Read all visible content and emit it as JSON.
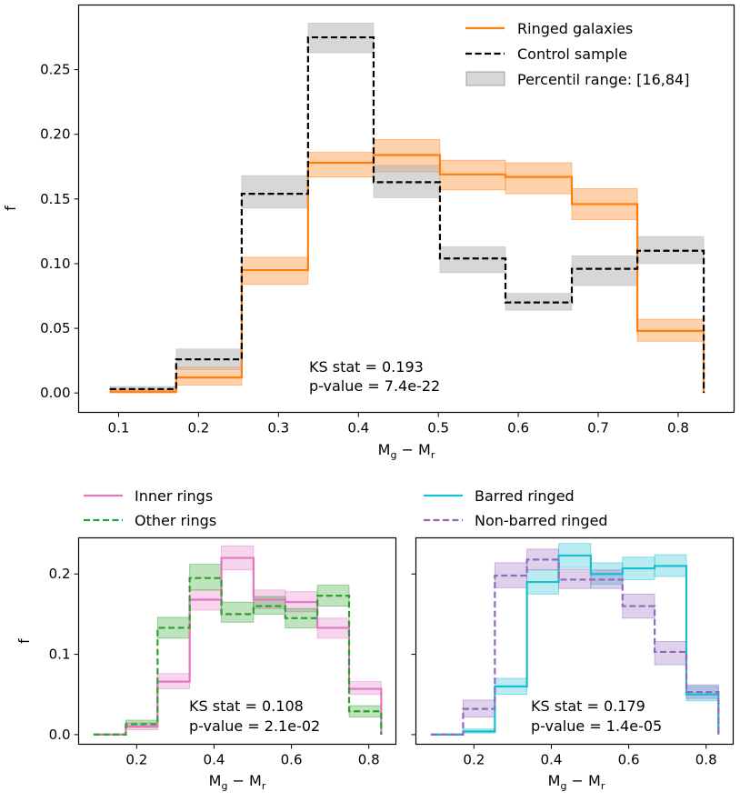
{
  "colors": {
    "ringed": "#ff7f0e",
    "control": "#000000",
    "band_gray": "#b0b0b0",
    "inner": "#e377c2",
    "other": "#2ca02c",
    "barred": "#17becf",
    "nonbarred": "#9467bd"
  },
  "chart_data": [
    {
      "type": "line",
      "subtype": "step-histogram",
      "panel": "top",
      "title": "",
      "xlabel": "M_g - M_r",
      "ylabel": "f",
      "xlim": [
        0.05,
        0.87
      ],
      "ylim": [
        -0.015,
        0.3
      ],
      "x_ticks": [
        0.1,
        0.2,
        0.3,
        0.4,
        0.5,
        0.6,
        0.7,
        0.8
      ],
      "x_tick_labels": [
        "0.1",
        "0.2",
        "0.3",
        "0.4",
        "0.5",
        "0.6",
        "0.7",
        "0.8"
      ],
      "y_ticks": [
        0,
        0.05,
        0.1,
        0.15,
        0.2,
        0.25
      ],
      "y_tick_labels": [
        "0.00",
        "0.05",
        "0.10",
        "0.15",
        "0.20",
        "0.25"
      ],
      "bin_edges": [
        0.089,
        0.172,
        0.254,
        0.337,
        0.419,
        0.502,
        0.584,
        0.667,
        0.749,
        0.832
      ],
      "series": [
        {
          "name": "Ringed galaxies",
          "style": "solid",
          "color": "#ff7f0e",
          "values": [
            0.001,
            0.012,
            0.095,
            0.178,
            0.184,
            0.169,
            0.167,
            0.146,
            0.048
          ],
          "lower": [
            0.0,
            0.006,
            0.084,
            0.167,
            0.171,
            0.157,
            0.154,
            0.134,
            0.04
          ],
          "upper": [
            0.003,
            0.02,
            0.105,
            0.186,
            0.196,
            0.18,
            0.178,
            0.158,
            0.057
          ]
        },
        {
          "name": "Control sample",
          "style": "dashed",
          "color": "#000000",
          "values": [
            0.003,
            0.026,
            0.154,
            0.275,
            0.163,
            0.104,
            0.07,
            0.096,
            0.11
          ],
          "lower": [
            0.001,
            0.018,
            0.143,
            0.263,
            0.151,
            0.093,
            0.064,
            0.083,
            0.1
          ],
          "upper": [
            0.005,
            0.034,
            0.168,
            0.286,
            0.176,
            0.113,
            0.077,
            0.106,
            0.121
          ]
        }
      ],
      "legend": {
        "position": "top-right",
        "entries": [
          "Ringed galaxies",
          "Control sample",
          "Percentil range: [16,84]"
        ]
      },
      "annotation": [
        "KS stat = 0.193",
        "p-value = 7.4e-22"
      ]
    },
    {
      "type": "line",
      "subtype": "step-histogram",
      "panel": "bottom-left",
      "xlabel": "M_g - M_r",
      "ylabel": "f",
      "xlim": [
        0.05,
        0.87
      ],
      "ylim": [
        -0.012,
        0.245
      ],
      "x_ticks": [
        0.2,
        0.4,
        0.6,
        0.8
      ],
      "x_tick_labels": [
        "0.2",
        "0.4",
        "0.6",
        "0.8"
      ],
      "y_ticks": [
        0,
        0.1,
        0.2
      ],
      "y_tick_labels": [
        "0.0",
        "0.1",
        "0.2"
      ],
      "bin_edges": [
        0.089,
        0.172,
        0.254,
        0.337,
        0.419,
        0.502,
        0.584,
        0.667,
        0.749,
        0.832
      ],
      "series": [
        {
          "name": "Inner rings",
          "style": "solid",
          "color": "#e377c2",
          "values": [
            0.0,
            0.01,
            0.066,
            0.168,
            0.22,
            0.168,
            0.165,
            0.133,
            0.057
          ],
          "lower": [
            0.0,
            0.006,
            0.057,
            0.155,
            0.205,
            0.157,
            0.153,
            0.12,
            0.05
          ],
          "upper": [
            0.001,
            0.015,
            0.076,
            0.18,
            0.235,
            0.18,
            0.178,
            0.145,
            0.066
          ]
        },
        {
          "name": "Other rings",
          "style": "dashed",
          "color": "#2ca02c",
          "values": [
            0.0,
            0.013,
            0.133,
            0.195,
            0.15,
            0.16,
            0.145,
            0.173,
            0.029
          ],
          "lower": [
            0.0,
            0.009,
            0.12,
            0.18,
            0.14,
            0.15,
            0.133,
            0.16,
            0.022
          ],
          "upper": [
            0.001,
            0.018,
            0.146,
            0.212,
            0.165,
            0.172,
            0.157,
            0.186,
            0.036
          ]
        }
      ],
      "legend": {
        "position": "above-left",
        "entries": [
          "Inner rings",
          "Other rings"
        ]
      },
      "annotation": [
        "KS stat = 0.108",
        "p-value = 2.1e-02"
      ]
    },
    {
      "type": "line",
      "subtype": "step-histogram",
      "panel": "bottom-right",
      "xlabel": "M_g - M_r",
      "ylabel": "",
      "xlim": [
        0.05,
        0.87
      ],
      "ylim": [
        -0.012,
        0.245
      ],
      "x_ticks": [
        0.2,
        0.4,
        0.6,
        0.8
      ],
      "x_tick_labels": [
        "0.2",
        "0.4",
        "0.6",
        "0.8"
      ],
      "y_ticks": [
        0,
        0.1,
        0.2
      ],
      "y_tick_labels": [
        "",
        "",
        ""
      ],
      "bin_edges": [
        0.089,
        0.172,
        0.254,
        0.337,
        0.419,
        0.502,
        0.584,
        0.667,
        0.749,
        0.832
      ],
      "series": [
        {
          "name": "Barred ringed",
          "style": "solid",
          "color": "#17becf",
          "values": [
            0.0,
            0.004,
            0.06,
            0.19,
            0.223,
            0.2,
            0.207,
            0.21,
            0.05
          ],
          "lower": [
            0.0,
            0.002,
            0.05,
            0.175,
            0.208,
            0.187,
            0.193,
            0.197,
            0.042
          ],
          "upper": [
            0.001,
            0.007,
            0.07,
            0.205,
            0.238,
            0.214,
            0.221,
            0.224,
            0.06
          ]
        },
        {
          "name": "Non-barred ringed",
          "style": "dashed",
          "color": "#9467bd",
          "values": [
            0.0,
            0.032,
            0.198,
            0.218,
            0.193,
            0.193,
            0.16,
            0.103,
            0.053
          ],
          "lower": [
            0.0,
            0.022,
            0.183,
            0.205,
            0.182,
            0.182,
            0.145,
            0.087,
            0.045
          ],
          "upper": [
            0.001,
            0.043,
            0.214,
            0.231,
            0.206,
            0.205,
            0.175,
            0.116,
            0.062
          ]
        }
      ],
      "legend": {
        "position": "above-left",
        "entries": [
          "Barred ringed",
          "Non-barred ringed"
        ]
      },
      "annotation": [
        "KS stat = 0.179",
        "p-value = 1.4e-05"
      ]
    }
  ]
}
